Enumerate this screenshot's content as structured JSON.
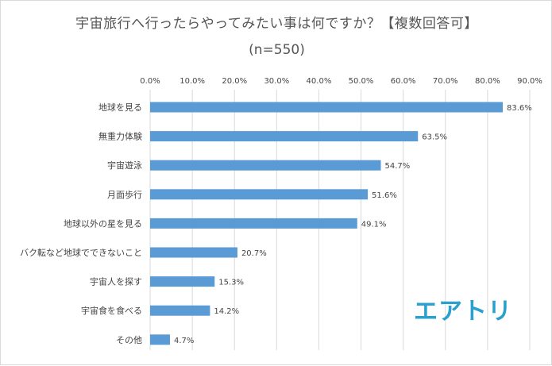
{
  "title": "宇宙旅行へ行ったらやってみたい事は何ですか？【複数回答可】",
  "subtitle": "(n=550)",
  "logo_text": "エアトリ",
  "colors": {
    "bar": "#5b9bd5",
    "grid": "#d9d9d9",
    "text": "#444444",
    "logo": "#2aa0cd"
  },
  "chart_data": {
    "type": "bar",
    "orientation": "horizontal",
    "categories": [
      "地球を見る",
      "無重力体験",
      "宇宙遊泳",
      "月面歩行",
      "地球以外の星を見る",
      "バク転など地球でできないこと",
      "宇宙人を探す",
      "宇宙食を食べる",
      "その他"
    ],
    "values": [
      83.6,
      63.5,
      54.7,
      51.6,
      49.1,
      20.7,
      15.3,
      14.2,
      4.7
    ],
    "data_labels": [
      "83.6%",
      "63.5%",
      "54.7%",
      "51.6%",
      "49.1%",
      "20.7%",
      "15.3%",
      "14.2%",
      "4.7%"
    ],
    "xlim": [
      0,
      90
    ],
    "ticks": [
      0,
      10,
      20,
      30,
      40,
      50,
      60,
      70,
      80,
      90
    ],
    "tick_labels": [
      "0.0%",
      "10.0%",
      "20.0%",
      "30.0%",
      "40.0%",
      "50.0%",
      "60.0%",
      "70.0%",
      "80.0%",
      "90.0%"
    ],
    "axis_position": "top",
    "grid": true,
    "legend": "none"
  }
}
